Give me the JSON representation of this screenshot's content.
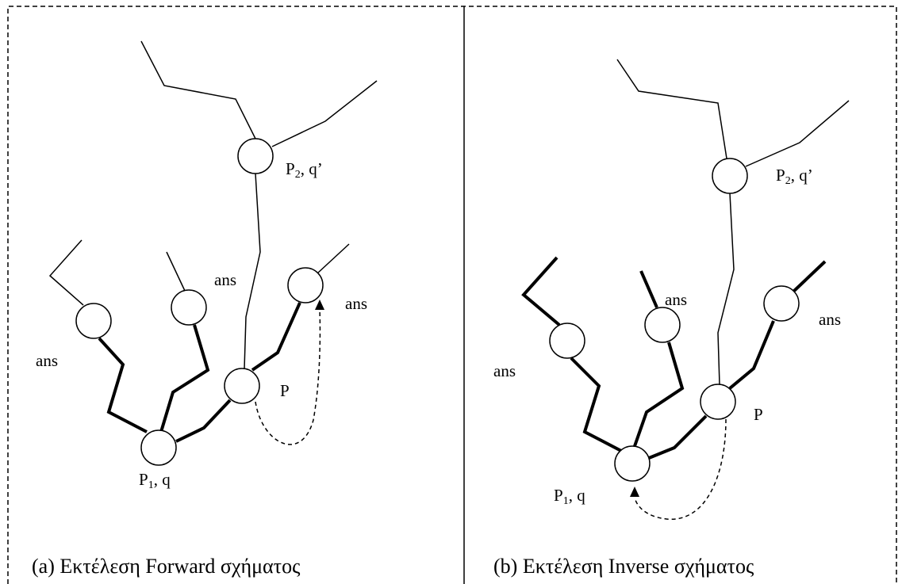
{
  "panels": [
    {
      "caption": "(a) Εκτέλεση Forward σχήματος",
      "labels": {
        "ans_left": "ans",
        "ans_mid": "ans",
        "ans_right": "ans",
        "p": "P",
        "p1": {
          "base": "P",
          "sub": "1",
          "rest": ", q"
        },
        "p2": {
          "base": "P",
          "sub": "2",
          "rest": ", q’"
        }
      }
    },
    {
      "caption": "(b) Εκτέλεση Inverse σχήματος",
      "labels": {
        "ans_left": "ans",
        "ans_mid": "ans",
        "ans_right": "ans",
        "p": "P",
        "p1": {
          "base": "P",
          "sub": "1",
          "rest": ", q"
        },
        "p2": {
          "base": "P",
          "sub": "2",
          "rest": ", q’"
        }
      }
    }
  ]
}
